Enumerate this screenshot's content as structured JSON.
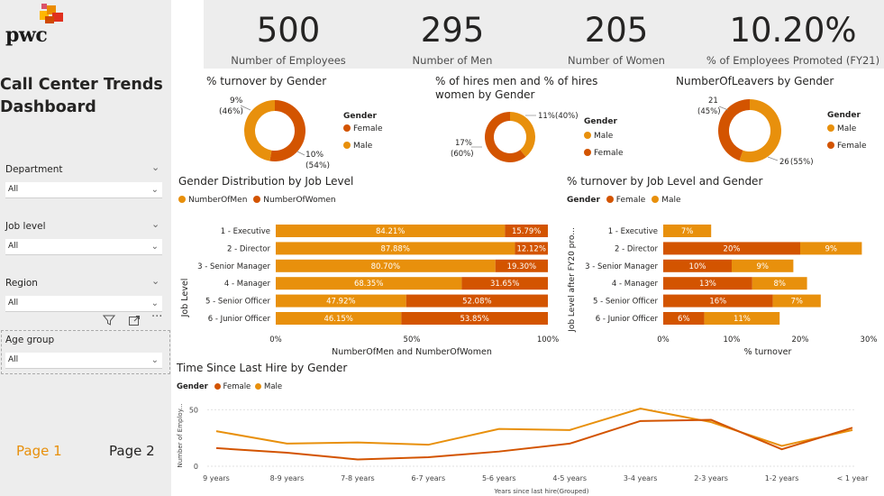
{
  "brand": {
    "name": "pwc"
  },
  "dashboard": {
    "title": "Call Center Trends Dashboard"
  },
  "filters": [
    {
      "label": "Department",
      "value": "All"
    },
    {
      "label": "Job level",
      "value": "All"
    },
    {
      "label": "Region",
      "value": "All"
    },
    {
      "label": "Age group",
      "value": "All"
    }
  ],
  "pages": {
    "page1": "Page 1",
    "page2": "Page 2"
  },
  "kpis": [
    {
      "value": "500",
      "label": "Number of Employees"
    },
    {
      "value": "295",
      "label": "Number of Men"
    },
    {
      "value": "205",
      "label": "Number of Women"
    },
    {
      "value": "10.20%",
      "label": "% of Employees Promoted (FY21)"
    }
  ],
  "colors": {
    "female": "#d35400",
    "male": "#e8900c",
    "sidebar": "#ededed",
    "page_active": "#e8900c"
  },
  "chart_data": [
    {
      "type": "pie",
      "title": "% turnover by Gender",
      "legend_title": "Gender",
      "legend": [
        "Female",
        "Male"
      ],
      "slices": [
        {
          "name": "Female",
          "value": 10,
          "label": "10%",
          "pct": "(54%)"
        },
        {
          "name": "Male",
          "value": 9,
          "label": "9%",
          "pct": "(46%)"
        }
      ]
    },
    {
      "type": "pie",
      "title": "% of hires men and % of hires women by Gender",
      "legend_title": "Gender",
      "legend": [
        "Male",
        "Female"
      ],
      "slices": [
        {
          "name": "Female",
          "value": 17,
          "label": "17%",
          "pct": "(60%)"
        },
        {
          "name": "Male",
          "value": 11,
          "label": "11%",
          "pct": "(40%)"
        }
      ]
    },
    {
      "type": "pie",
      "title": "NumberOfLeavers by Gender",
      "legend_title": "Gender",
      "legend": [
        "Male",
        "Female"
      ],
      "slices": [
        {
          "name": "Male",
          "value": 26,
          "label": "26",
          "pct": "(55%)"
        },
        {
          "name": "Female",
          "value": 21,
          "label": "21",
          "pct": "(45%)"
        }
      ]
    },
    {
      "type": "bar",
      "title": "Gender Distribution by Job Level",
      "orientation": "horizontal-stacked-100",
      "categories": [
        "1 - Executive",
        "2 - Director",
        "3 - Senior Manager",
        "4 - Manager",
        "5 - Senior Officer",
        "6 - Junior Officer"
      ],
      "series": [
        {
          "name": "NumberOfMen",
          "values": [
            84.21,
            87.88,
            80.7,
            68.35,
            47.92,
            46.15
          ],
          "labels": [
            "84.21%",
            "87.88%",
            "80.70%",
            "68.35%",
            "47.92%",
            "46.15%"
          ]
        },
        {
          "name": "NumberOfWomen",
          "values": [
            15.79,
            12.12,
            19.3,
            31.65,
            52.08,
            53.85
          ],
          "labels": [
            "15.79%",
            "12.12%",
            "19.30%",
            "31.65%",
            "52.08%",
            "53.85%"
          ]
        }
      ],
      "xlabel": "NumberOfMen and NumberOfWomen",
      "ylabel": "Job Level",
      "xticks": [
        "0%",
        "50%",
        "100%"
      ],
      "xlim": [
        0,
        100
      ]
    },
    {
      "type": "bar",
      "title": "% turnover by Job Level and Gender",
      "orientation": "horizontal-stacked",
      "legend_title": "Gender",
      "categories": [
        "1 - Executive",
        "2 - Director",
        "3 - Senior Manager",
        "4 - Manager",
        "5 - Senior Officer",
        "6 - Junior Officer"
      ],
      "series": [
        {
          "name": "Female",
          "values": [
            0,
            20,
            10,
            13,
            16,
            6
          ],
          "labels": [
            "",
            "20%",
            "10%",
            "13%",
            "16%",
            "6%"
          ]
        },
        {
          "name": "Male",
          "values": [
            7,
            9,
            9,
            8,
            7,
            11
          ],
          "labels": [
            "7%",
            "9%",
            "9%",
            "8%",
            "7%",
            "11%"
          ]
        }
      ],
      "xlabel": "% turnover",
      "ylabel": "Job Level after FY20 pro...",
      "xticks": [
        "0%",
        "10%",
        "20%",
        "30%"
      ],
      "xlim": [
        0,
        30
      ]
    },
    {
      "type": "line",
      "title": "Time Since Last Hire by Gender",
      "legend_title": "Gender",
      "x": [
        "9 years",
        "8-9 years",
        "7-8 years",
        "6-7 years",
        "5-6 years",
        "4-5 years",
        "3-4 years",
        "2-3 years",
        "1-2 years",
        "< 1 year"
      ],
      "series": [
        {
          "name": "Female",
          "values": [
            16,
            12,
            6,
            8,
            13,
            20,
            40,
            41,
            15,
            34
          ]
        },
        {
          "name": "Male",
          "values": [
            31,
            20,
            21,
            19,
            33,
            32,
            51,
            39,
            18,
            32
          ]
        }
      ],
      "xlabel": "Years since last hire(Grouped)",
      "ylabel": "Number of Employ...",
      "yticks": [
        "0",
        "50"
      ],
      "ylim": [
        0,
        55
      ]
    }
  ]
}
